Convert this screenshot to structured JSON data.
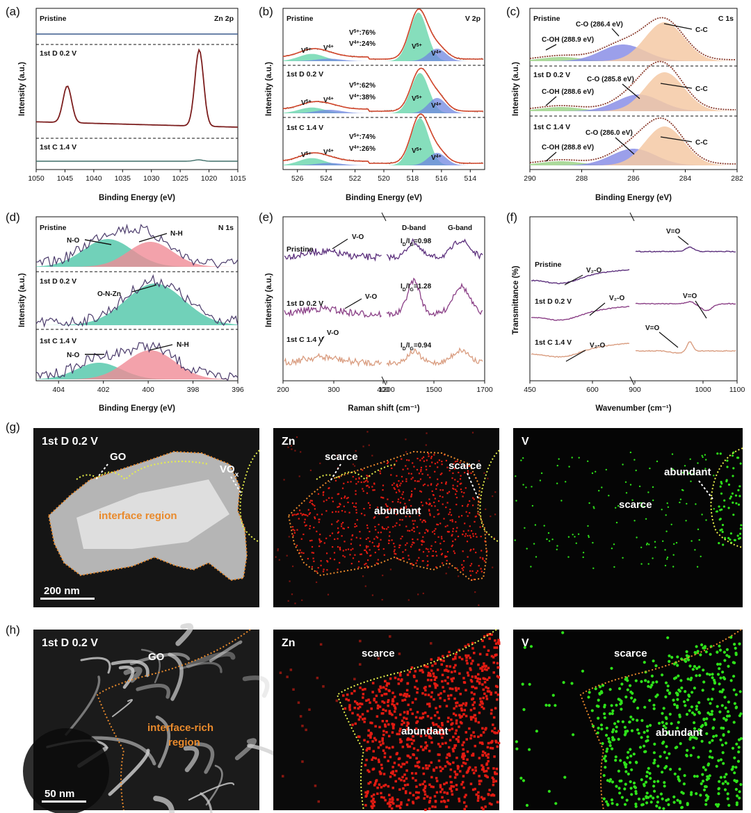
{
  "panel_labels": [
    "(a)",
    "(b)",
    "(c)",
    "(d)",
    "(e)",
    "(f)",
    "(g)",
    "(h)"
  ],
  "chart_data": [
    {
      "id": "a",
      "type": "line",
      "title": "Zn 2p",
      "xlabel": "Binding Energy (eV)",
      "ylabel": "Intensity (a.u.)",
      "xlim": [
        1050,
        1015
      ],
      "xticks": [
        1050,
        1045,
        1040,
        1035,
        1030,
        1025,
        1020,
        1015
      ],
      "tracks": [
        {
          "label": "Pristine",
          "peaks": [],
          "height": 0.0
        },
        {
          "label": "1st D 0.2 V",
          "peaks": [
            {
              "center": 1044.6,
              "height": 0.48
            },
            {
              "center": 1021.7,
              "height": 1.0
            }
          ]
        },
        {
          "label": "1st C 1.4 V",
          "peaks": [
            {
              "center": 1021.8,
              "height": 0.04
            }
          ]
        }
      ]
    },
    {
      "id": "b",
      "type": "line",
      "title": "V 2p",
      "xlabel": "Binding Energy (eV)",
      "ylabel": "Intensity (a.u.)",
      "xlim": [
        527,
        513
      ],
      "xticks": [
        526,
        524,
        522,
        520,
        518,
        516,
        514
      ],
      "tracks": [
        {
          "label": "Pristine",
          "V5": "76%",
          "V4": "24%",
          "peaks": {
            "v5_2p1": 525.0,
            "v4_2p1": 523.8,
            "v5_2p3": 517.6,
            "v4_2p3": 516.3
          }
        },
        {
          "label": "1st D 0.2 V",
          "V5": "62%",
          "V4": "38%",
          "peaks": {
            "v5_2p1": 525.0,
            "v4_2p1": 523.8,
            "v5_2p3": 517.5,
            "v4_2p3": 516.3
          }
        },
        {
          "label": "1st C 1.4 V",
          "V5": "74%",
          "V4": "26%",
          "peaks": {
            "v5_2p1": 525.0,
            "v4_2p1": 523.8,
            "v5_2p3": 517.5,
            "v4_2p3": 516.3
          }
        }
      ],
      "labels": {
        "v5": "V",
        "v5_sup": "5+",
        "v4": "V",
        "v4_sup": "4+"
      }
    },
    {
      "id": "c",
      "type": "line",
      "title": "C 1s",
      "xlabel": "Binding Energy (eV)",
      "ylabel": "Intensity (a.u.)",
      "xlim": [
        290,
        282
      ],
      "xticks": [
        290,
        288,
        286,
        284,
        282
      ],
      "tracks": [
        {
          "label": "Pristine",
          "co": "C-O (286.4 eV)",
          "coh": "C-OH (288.9 eV)",
          "cc": "C-C"
        },
        {
          "label": "1st D 0.2 V",
          "co": "C-O (285.8 eV)",
          "coh": "C-OH (288.6 eV)",
          "cc": "C-C"
        },
        {
          "label": "1st C 1.4 V",
          "co": "C-O (286.0 eV)",
          "coh": "C-OH (288.8 eV)",
          "cc": "C-C"
        }
      ]
    },
    {
      "id": "d",
      "type": "line",
      "title": "N 1s",
      "xlabel": "Binding Energy (eV)",
      "ylabel": "Intensity (a.u.)",
      "xlim": [
        405,
        396
      ],
      "xticks": [
        404,
        402,
        400,
        398,
        396
      ],
      "tracks": [
        {
          "label": "Pristine",
          "left": "N-O",
          "right": "N-H"
        },
        {
          "label": "1st D 0.2 V",
          "center": "O-N-Zn"
        },
        {
          "label": "1st C 1.4 V",
          "left": "N-O",
          "right": "N-H"
        }
      ]
    },
    {
      "id": "e",
      "type": "line",
      "xlabel": "Raman shift (cm⁻¹)",
      "ylabel": "Intensity (a.u.)",
      "xticks": [
        "200",
        "300",
        "400",
        "1200",
        "1500",
        "1700"
      ],
      "bands": [
        "D-band",
        "G-band"
      ],
      "tracks": [
        {
          "label": "Pristine",
          "mode": "V-O",
          "ratio": "=0.98"
        },
        {
          "label": "1st D 0.2 V",
          "mode": "V-O",
          "ratio": "=1.28"
        },
        {
          "label": "1st C 1.4 V",
          "mode": "V-O",
          "ratio": "=0.94"
        }
      ]
    },
    {
      "id": "f",
      "type": "line",
      "xlabel": "Wavenumber (cm⁻¹)",
      "ylabel": "Transmittance (%)",
      "xticks": [
        "450",
        "600",
        "900",
        "1000",
        "1100"
      ],
      "tracks": [
        {
          "label": "Pristine",
          "low": "V₂-O",
          "high": "V=O"
        },
        {
          "label": "1st D 0.2 V",
          "low": "V₂-O",
          "high": "V=O"
        },
        {
          "label": "1st C 1.4 V",
          "low": "V₂-O",
          "high": "V=O"
        }
      ]
    }
  ],
  "microscopy": {
    "g": {
      "title": "1st D 0.2 V",
      "go": "GO",
      "vox": "VO",
      "vox_sub": "x",
      "interface": "interface region",
      "scale": "200 nm",
      "zn_title": "Zn",
      "zn_scarce_1": "scarce",
      "zn_scarce_2": "scarce",
      "zn_abundant": "abundant",
      "v_title": "V",
      "v_scarce": "scarce",
      "v_abundant": "abundant"
    },
    "h": {
      "title": "1st D 0.2 V",
      "go": "GO",
      "interface_1": "interface-rich",
      "interface_2": "region",
      "scale": "50 nm",
      "zn_title": "Zn",
      "zn_scarce": "scarce",
      "zn_abundant": "abundant",
      "v_title": "V",
      "v_scarce": "scarce",
      "v_abundant": "abundant"
    }
  },
  "colors": {
    "fit_red": "#d2462b",
    "raw_brown": "#7c3a2e",
    "v5_fill": "#5ed3a5",
    "v4_fill": "#6f86e0",
    "co_fill": "#8a8ee6",
    "cc_fill": "#f5c9a4",
    "no_fill": "#4dc5a8",
    "nh_fill": "#f08b96",
    "zn_map": "#e21b12",
    "v_map": "#2ee11a",
    "raman_1": "#5b2f7c",
    "raman_2": "#8a3f86",
    "raman_3": "#d99c7f"
  }
}
